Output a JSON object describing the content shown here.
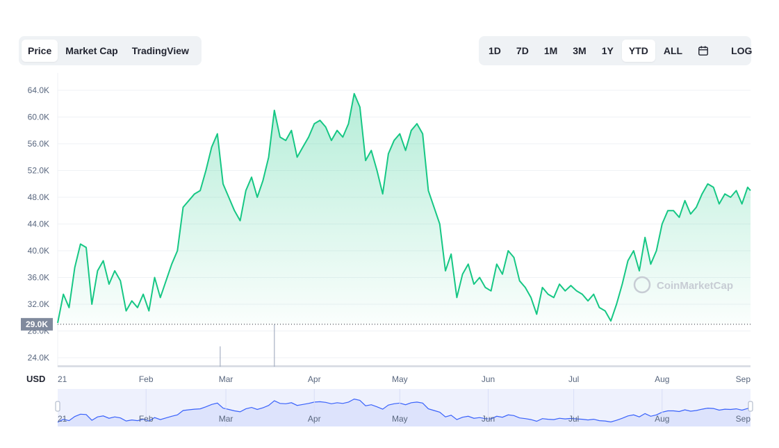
{
  "tabs_left": [
    {
      "label": "Price",
      "active": true
    },
    {
      "label": "Market Cap",
      "active": false
    },
    {
      "label": "TradingView",
      "active": false
    }
  ],
  "tabs_right": [
    {
      "label": "1D",
      "active": false
    },
    {
      "label": "7D",
      "active": false
    },
    {
      "label": "1M",
      "active": false
    },
    {
      "label": "3M",
      "active": false
    },
    {
      "label": "1Y",
      "active": false
    },
    {
      "label": "YTD",
      "active": true
    },
    {
      "label": "ALL",
      "active": false
    }
  ],
  "log_label": "LOG",
  "calendar_icon": "calendar-icon",
  "currency_label": "USD",
  "watermark": "CoinMarketCap",
  "colors": {
    "line": "#16c784",
    "fill_top": "#16c784",
    "navigator_line": "#3861fb",
    "navigator_fill": "#dde3fc",
    "ref_box": "#808a9d"
  },
  "chart_data": {
    "type": "area",
    "y_ticks": [
      "24.0K",
      "28.0K",
      "32.0K",
      "36.0K",
      "40.0K",
      "44.0K",
      "48.0K",
      "52.0K",
      "56.0K",
      "60.0K",
      "64.0K"
    ],
    "y_tick_values": [
      24000,
      28000,
      32000,
      36000,
      40000,
      44000,
      48000,
      52000,
      56000,
      60000,
      64000
    ],
    "x_ticks": [
      "21",
      "Feb",
      "Mar",
      "Apr",
      "May",
      "Jun",
      "Jul",
      "Aug",
      "Sep"
    ],
    "x_tick_days": [
      0,
      31,
      59,
      90,
      120,
      151,
      181,
      212,
      243
    ],
    "reference_value": 29000,
    "reference_label": "29.0K",
    "x_range_days": [
      0,
      243
    ],
    "series": [
      {
        "x_days": [
          0,
          2,
          4,
          6,
          8,
          10,
          12,
          14,
          16,
          18,
          20,
          22,
          24,
          26,
          28,
          30,
          32,
          34,
          36,
          38,
          40,
          42,
          44,
          46,
          48,
          50,
          52,
          54,
          56,
          58,
          60,
          62,
          64,
          66,
          68,
          70,
          72,
          74,
          76,
          78,
          80,
          82,
          84,
          86,
          88,
          90,
          92,
          94,
          96,
          98,
          100,
          102,
          104,
          106,
          108,
          110,
          112,
          114,
          116,
          118,
          120,
          122,
          124,
          126,
          128,
          130,
          132,
          134,
          136,
          138,
          140,
          142,
          144,
          146,
          148,
          150,
          152,
          154,
          156,
          158,
          160,
          162,
          164,
          166,
          168,
          170,
          172,
          174,
          176,
          178,
          180,
          182,
          184,
          186,
          188,
          190,
          192,
          194,
          196,
          198,
          200,
          202,
          204,
          206,
          208,
          210,
          212,
          214,
          216,
          218,
          220,
          222,
          224,
          226,
          228,
          230,
          232,
          234,
          236,
          238,
          240,
          242,
          243
        ],
        "values": [
          29200,
          33500,
          31500,
          37500,
          41000,
          40500,
          32000,
          37000,
          38500,
          35000,
          37000,
          35500,
          31000,
          32500,
          31500,
          33500,
          31000,
          36000,
          33000,
          35500,
          38000,
          40000,
          46500,
          47500,
          48500,
          49000,
          52000,
          55500,
          57500,
          50000,
          48000,
          46000,
          44500,
          49000,
          51000,
          48000,
          50500,
          54000,
          61000,
          57000,
          56500,
          58000,
          54000,
          55500,
          57000,
          59000,
          59500,
          58500,
          56500,
          58000,
          57000,
          59000,
          63500,
          61500,
          53500,
          55000,
          52000,
          48500,
          54500,
          56500,
          57500,
          55000,
          58000,
          59000,
          57500,
          49000,
          46500,
          44000,
          37000,
          39500,
          33000,
          36500,
          38000,
          35000,
          36000,
          34500,
          34000,
          38000,
          36500,
          40000,
          39000,
          35500,
          34500,
          33000,
          30500,
          34500,
          33500,
          33000,
          35000,
          34000,
          34800,
          34000,
          33500,
          32500,
          33500,
          31500,
          31000,
          29500,
          32000,
          35000,
          38500,
          40000,
          37000,
          42000,
          38000,
          40000,
          44000,
          46000,
          46000,
          45000,
          47500,
          45500,
          46500,
          48500,
          50000,
          49500,
          47000,
          48500,
          48000,
          49000,
          47000,
          49500,
          49000
        ]
      }
    ],
    "volume_spikes": [
      {
        "x_day": 57,
        "value": 25700
      },
      {
        "x_day": 76,
        "value": 29000
      }
    ]
  }
}
